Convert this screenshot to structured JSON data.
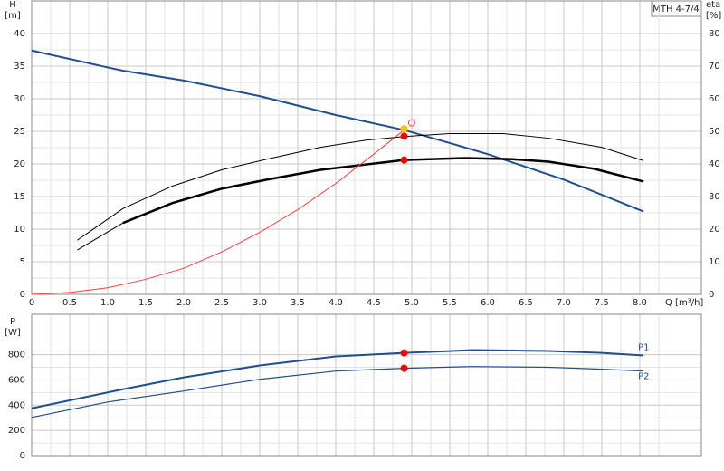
{
  "chart_data": [
    {
      "type": "line",
      "model": "MTH 4-7/4",
      "ylabel": "H",
      "yunit": "[m]",
      "y2label": "eta",
      "y2unit": "[%]",
      "xlabel": "Q [m³/h]",
      "xlim": [
        0,
        8.81
      ],
      "ylim": [
        0,
        45
      ],
      "y2lim": [
        0,
        90
      ],
      "grid": true,
      "xticks": [
        0,
        0.5,
        {
          "value": 1,
          "label": "1.0"
        },
        1.5,
        {
          "value": 2,
          "label": "2.0"
        },
        2.5,
        {
          "value": 3,
          "label": "3.0"
        },
        3.5,
        {
          "value": 4,
          "label": "4.0"
        },
        4.5,
        {
          "value": 5,
          "label": "5.0"
        },
        5.5,
        {
          "value": 6,
          "label": "6.0"
        },
        6.5,
        {
          "value": 7,
          "label": "7.0"
        },
        7.5,
        {
          "value": 8,
          "label": "8.0"
        }
      ],
      "yticks": [
        0,
        5,
        10,
        15,
        20,
        25,
        30,
        35,
        40
      ],
      "y2ticks": [
        0,
        10,
        20,
        30,
        40,
        50,
        60,
        70,
        80
      ],
      "series": [
        {
          "color": "#1f4f8f",
          "width": 2,
          "axis": "y",
          "x": [
            0,
            1.0,
            1.2,
            2,
            3,
            4,
            4.9,
            5.5,
            6,
            7,
            8.05
          ],
          "values": [
            37.4,
            34.8,
            34.3,
            32.8,
            30.4,
            27.5,
            25.2,
            23.2,
            21.5,
            17.6,
            12.7
          ]
        },
        {
          "color": "#000000",
          "width": 2.5,
          "axis": "y2",
          "x": [
            1.2,
            1.85,
            2.5,
            3.1,
            3.8,
            4.9,
            5.7,
            6.3,
            6.8,
            7.4,
            8.05
          ],
          "values": [
            21.9,
            28,
            32.4,
            35.2,
            38.2,
            41.2,
            41.8,
            41.5,
            40.7,
            38.5,
            34.6
          ]
        },
        {
          "color": "#000000",
          "width": 1,
          "axis": "y2",
          "x": [
            0.6,
            1.2
          ],
          "values": [
            13.6,
            21.9
          ]
        },
        {
          "color": "#000000",
          "width": 1,
          "axis": "y2",
          "x": [
            0.6,
            1.2,
            1.85,
            2.5,
            3.1,
            3.8,
            4.4,
            4.9,
            5.5,
            6.2,
            6.8,
            7.5,
            8.05
          ],
          "values": [
            16.6,
            26.3,
            33.2,
            38.2,
            41.5,
            45.1,
            47.3,
            48.4,
            49.3,
            49.3,
            47.9,
            45.1,
            41
          ]
        },
        {
          "color": "#ff3b3b",
          "width": 1,
          "axis": "y",
          "x": [
            0,
            0.5,
            1.0,
            1.5,
            2,
            2.5,
            3,
            3.5,
            4,
            4.5,
            4.9
          ],
          "values": [
            0,
            0.3,
            1.0,
            2.3,
            4.0,
            6.5,
            9.5,
            13,
            17,
            21.5,
            25.2
          ]
        }
      ],
      "points": [
        {
          "x": 4.9,
          "y": 25.4,
          "axis": "y",
          "color": "#ffc000",
          "open": false
        },
        {
          "x": 4.9,
          "y": 48.5,
          "axis": "y2",
          "color": "#ff0000",
          "open": false
        },
        {
          "x": 4.9,
          "y": 41.2,
          "axis": "y2",
          "color": "#ff0000",
          "open": false
        },
        {
          "x": 5.0,
          "y": 26.3,
          "axis": "y",
          "color": "#ff4040",
          "open": true
        }
      ]
    },
    {
      "type": "line",
      "ylabel": "P",
      "yunit": "[W]",
      "xlim": [
        0,
        8.81
      ],
      "ylim": [
        0,
        1120
      ],
      "grid": true,
      "yticks": [
        0,
        200,
        400,
        600,
        800
      ],
      "series": [
        {
          "name": "P1",
          "color": "#1f4f8f",
          "width": 2,
          "axis": "y",
          "x": [
            0,
            1.2,
            2,
            3,
            4,
            4.9,
            5.8,
            6.8,
            7.5,
            8.05
          ],
          "values": [
            375,
            526,
            620,
            714,
            786,
            814,
            836,
            829,
            814,
            793
          ]
        },
        {
          "name": "P2",
          "color": "#1f4f8f",
          "width": 1.2,
          "axis": "y",
          "x": [
            0,
            1,
            2,
            3,
            4,
            4.9,
            5.8,
            6.8,
            7.5,
            8.05
          ],
          "values": [
            303,
            425,
            512,
            605,
            670,
            692,
            706,
            700,
            685,
            670
          ]
        }
      ],
      "points": [
        {
          "x": 4.9,
          "y": 814,
          "axis": "y",
          "color": "#ff0000",
          "open": false
        },
        {
          "x": 4.9,
          "y": 692,
          "axis": "y",
          "color": "#ff0000",
          "open": false
        }
      ]
    }
  ]
}
